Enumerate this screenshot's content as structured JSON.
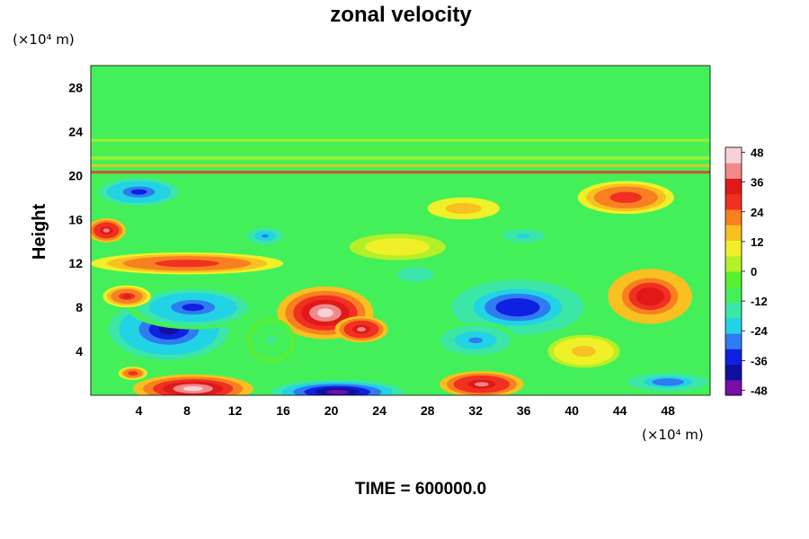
{
  "chart_data": {
    "type": "heatmap",
    "title": "zonal velocity",
    "ylabel": "Height",
    "xunit": "(×10⁴ m)",
    "yunit": "(×10⁴ m)",
    "xlim": [
      0,
      51.5
    ],
    "ylim": [
      0,
      30
    ],
    "xticks": [
      4,
      8,
      12,
      16,
      20,
      24,
      28,
      32,
      36,
      40,
      44,
      48
    ],
    "yticks": [
      4,
      8,
      12,
      16,
      20,
      24,
      28
    ],
    "colorbar": {
      "range": [
        -50,
        50
      ],
      "ticks": [
        48,
        36,
        24,
        12,
        0,
        -12,
        -24,
        -36,
        -48
      ],
      "colors": [
        "#7a0ca8",
        "#1010a0",
        "#1020e0",
        "#2f7cf0",
        "#22d3e6",
        "#3be6a6",
        "#44f05a",
        "#5af030",
        "#b4f028",
        "#f0f028",
        "#f8c020",
        "#f88020",
        "#f03020",
        "#e01818",
        "#f08a8a",
        "#f8d0d8"
      ]
    },
    "features": [
      {
        "x": 6.5,
        "y": 6.0,
        "rx": 5.0,
        "ry": 2.8,
        "value": -40
      },
      {
        "x": 8.5,
        "y": 8.0,
        "rx": 5.5,
        "ry": 2.0,
        "value": -32
      },
      {
        "x": 19.5,
        "y": 7.5,
        "rx": 4.0,
        "ry": 2.4,
        "value": 44
      },
      {
        "x": 22.5,
        "y": 6.0,
        "rx": 2.2,
        "ry": 1.2,
        "value": 40
      },
      {
        "x": 35.5,
        "y": 8.0,
        "rx": 5.5,
        "ry": 2.5,
        "value": -36
      },
      {
        "x": 32.0,
        "y": 5.0,
        "rx": 3.5,
        "ry": 1.6,
        "value": -28
      },
      {
        "x": 46.5,
        "y": 9.0,
        "rx": 3.5,
        "ry": 2.5,
        "value": 36
      },
      {
        "x": 8.5,
        "y": 0.6,
        "rx": 5.0,
        "ry": 1.3,
        "value": 44
      },
      {
        "x": 20.5,
        "y": 0.3,
        "rx": 5.5,
        "ry": 1.1,
        "value": -46
      },
      {
        "x": 32.5,
        "y": 1.0,
        "rx": 3.5,
        "ry": 1.2,
        "value": 40
      },
      {
        "x": 48.0,
        "y": 1.2,
        "rx": 4.0,
        "ry": 1.0,
        "value": -30
      },
      {
        "x": 4.0,
        "y": 18.5,
        "rx": 4.0,
        "ry": 1.5,
        "value": -32
      },
      {
        "x": 1.3,
        "y": 15.0,
        "rx": 1.6,
        "ry": 1.1,
        "value": 40
      },
      {
        "x": 8.0,
        "y": 12.0,
        "rx": 8.0,
        "ry": 1.0,
        "value": 30
      },
      {
        "x": 14.5,
        "y": 14.5,
        "rx": 1.8,
        "ry": 0.9,
        "value": -26
      },
      {
        "x": 44.5,
        "y": 18.0,
        "rx": 4.0,
        "ry": 1.5,
        "value": 30
      },
      {
        "x": 31.0,
        "y": 17.0,
        "rx": 3.0,
        "ry": 1.0,
        "value": 18
      },
      {
        "x": 36.0,
        "y": 14.5,
        "rx": 3.5,
        "ry": 1.2,
        "value": -20
      },
      {
        "x": 27.0,
        "y": 11.0,
        "rx": 3.0,
        "ry": 1.4,
        "value": -18
      },
      {
        "x": 41.0,
        "y": 4.0,
        "rx": 3.0,
        "ry": 1.5,
        "value": 16
      },
      {
        "x": 3.0,
        "y": 9.0,
        "rx": 2.0,
        "ry": 1.0,
        "value": 32
      },
      {
        "x": 3.5,
        "y": 2.0,
        "rx": 1.2,
        "ry": 0.6,
        "value": 30
      },
      {
        "x": 25.5,
        "y": 13.5,
        "rx": 4.0,
        "ry": 1.2,
        "value": 10
      },
      {
        "x": 15.0,
        "y": 5.0,
        "rx": 2.0,
        "ry": 2.0,
        "value": -14
      }
    ],
    "annotation": "TIME = 600000.0"
  }
}
